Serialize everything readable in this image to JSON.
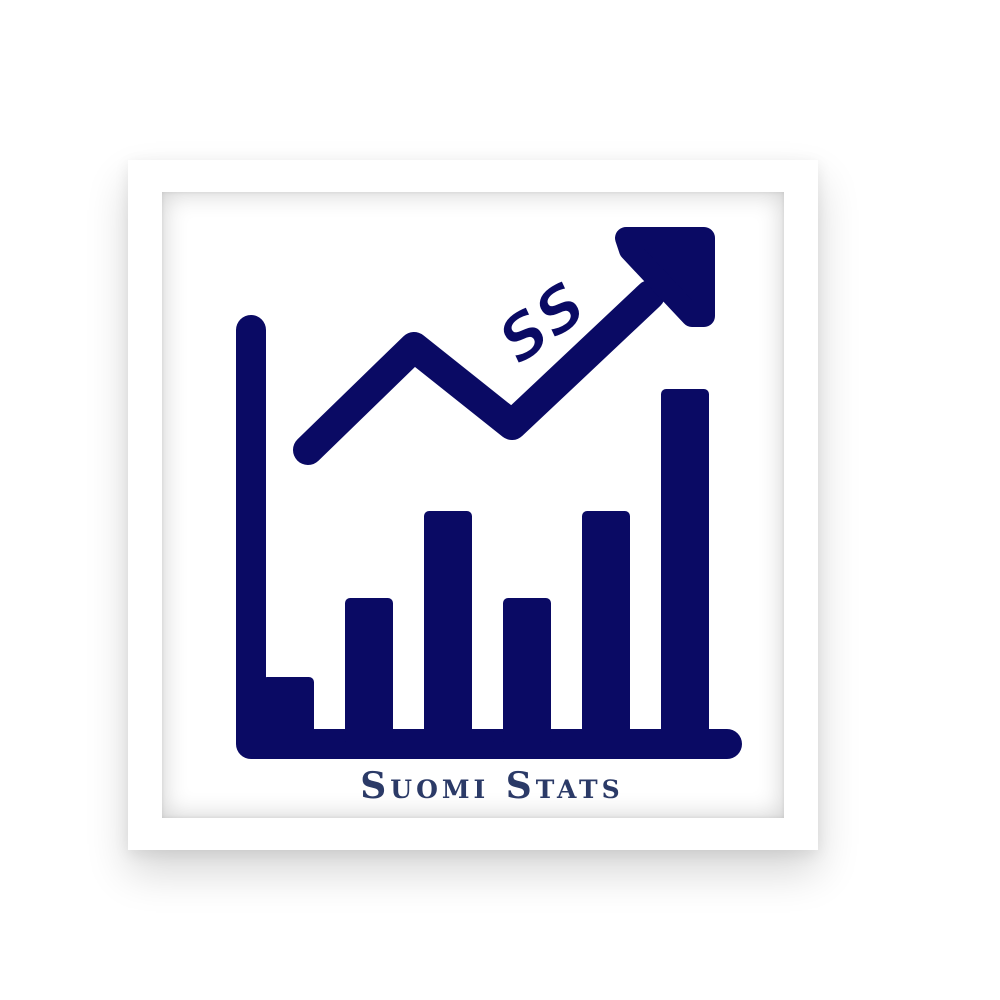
{
  "logo": {
    "monogram": "SS",
    "brand_name": "Suomi Stats"
  },
  "colors": {
    "mark": "#0a0a64",
    "text": "#2b3a67",
    "frame": "#ffffff"
  },
  "icons": [
    "bar-chart-icon",
    "trend-arrow-icon"
  ]
}
